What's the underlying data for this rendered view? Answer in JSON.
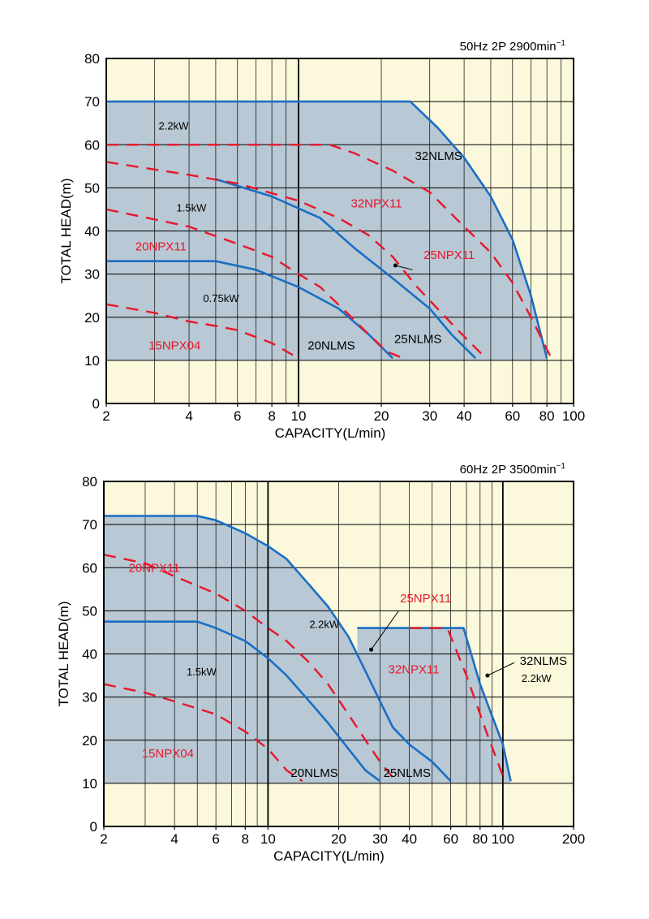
{
  "chart_data": [
    {
      "type": "line",
      "condition": "50Hz 2P 2900min",
      "condition_sup": "−1",
      "xlabel": "CAPACITY(L/min)",
      "ylabel": "TOTAL HEAD(m)",
      "xscale": "log",
      "xlim": [
        2,
        100
      ],
      "ylim": [
        0,
        80
      ],
      "x_ticks": [
        2,
        4,
        6,
        8,
        10,
        20,
        30,
        40,
        60,
        80,
        100
      ],
      "x_tick_labels": [
        "2",
        "4",
        "6",
        "8",
        "10",
        "20",
        "30",
        "40",
        "60",
        "80",
        "100"
      ],
      "y_ticks": [
        0,
        10,
        20,
        30,
        40,
        50,
        60,
        70,
        80
      ],
      "y_tick_labels": [
        "0",
        "10",
        "20",
        "30",
        "40",
        "50",
        "60",
        "70",
        "80"
      ],
      "shade_min_y": 10,
      "colors": {
        "nlms": "#1a6fc4",
        "npx": "#e8172b",
        "shade": "#b8c8d4",
        "background": "#fbf8dc"
      },
      "series": [
        {
          "name": "32NLMS",
          "style": "solid",
          "points": [
            [
              2,
              70
            ],
            [
              25.5,
              70
            ],
            [
              32,
              64
            ],
            [
              40,
              57
            ],
            [
              50,
              48
            ],
            [
              60,
              38
            ],
            [
              70,
              25
            ],
            [
              80,
              10.5
            ]
          ]
        },
        {
          "name": "32NPX11",
          "style": "dashed",
          "points": [
            [
              2,
              60
            ],
            [
              13,
              60
            ],
            [
              16,
              58
            ],
            [
              22,
              54
            ],
            [
              30,
              49
            ],
            [
              40,
              41
            ],
            [
              50,
              35
            ],
            [
              60,
              28
            ],
            [
              70,
              20
            ],
            [
              83,
              10.5
            ]
          ]
        },
        {
          "name": "25NLMS",
          "style": "solid",
          "points": [
            [
              5,
              52
            ],
            [
              8,
              48
            ],
            [
              12,
              43
            ],
            [
              16,
              36
            ],
            [
              22,
              29
            ],
            [
              30,
              22
            ],
            [
              36,
              16
            ],
            [
              44,
              10.5
            ]
          ]
        },
        {
          "name": "25NPX11",
          "style": "dashed",
          "points": [
            [
              2,
              56
            ],
            [
              4,
              53
            ],
            [
              6,
              51
            ],
            [
              10,
              47
            ],
            [
              14,
              43
            ],
            [
              18,
              39
            ],
            [
              22,
              34
            ],
            [
              27,
              27
            ],
            [
              32,
              22
            ],
            [
              38,
              17
            ],
            [
              48,
              10.5
            ]
          ]
        },
        {
          "name": "20NLMS",
          "style": "solid",
          "points": [
            [
              2,
              33
            ],
            [
              5,
              33
            ],
            [
              7,
              31
            ],
            [
              10,
              27
            ],
            [
              14,
              22
            ],
            [
              18,
              16
            ],
            [
              22,
              10.5
            ]
          ]
        },
        {
          "name": "20NPX11",
          "style": "dashed",
          "points": [
            [
              2,
              45
            ],
            [
              4,
              41
            ],
            [
              6,
              37
            ],
            [
              8,
              34
            ],
            [
              10,
              30
            ],
            [
              12,
              27
            ],
            [
              15,
              21
            ],
            [
              18,
              16
            ],
            [
              21,
              12
            ],
            [
              24,
              10.5
            ]
          ]
        },
        {
          "name": "15NPX04",
          "style": "dashed",
          "points": [
            [
              2,
              23
            ],
            [
              3,
              21
            ],
            [
              4,
              19
            ],
            [
              5,
              18
            ],
            [
              6,
              17
            ],
            [
              8,
              14
            ],
            [
              10,
              10.5
            ]
          ]
        }
      ],
      "labels": [
        {
          "text": "2.2kW",
          "x": 3.1,
          "y": 63.5,
          "color": "#000",
          "size": "small"
        },
        {
          "text": "32NLMS",
          "x": 26.5,
          "y": 56.5,
          "color": "#000",
          "size": "normal"
        },
        {
          "text": "32NPX11",
          "x": 15.5,
          "y": 45.5,
          "color": "#e8172b",
          "size": "normal"
        },
        {
          "text": "1.5kW",
          "x": 3.6,
          "y": 44.5,
          "color": "#000",
          "size": "small"
        },
        {
          "text": "20NPX11",
          "x": 2.55,
          "y": 35.5,
          "color": "#e8172b",
          "size": "normal"
        },
        {
          "text": "25NPX11",
          "x": 28.5,
          "y": 33.5,
          "color": "#e8172b",
          "size": "normal"
        },
        {
          "text": "0.75kW",
          "x": 4.5,
          "y": 23.5,
          "color": "#000",
          "size": "small"
        },
        {
          "text": "15NPX04",
          "x": 2.85,
          "y": 12.5,
          "color": "#e8172b",
          "size": "normal"
        },
        {
          "text": "20NLMS",
          "x": 10.8,
          "y": 12.5,
          "color": "#000",
          "size": "normal"
        },
        {
          "text": "25NLMS",
          "x": 22.3,
          "y": 14.0,
          "color": "#000",
          "size": "normal"
        }
      ],
      "leaders": [
        {
          "from": [
            26,
            31
          ],
          "to": [
            22.5,
            32
          ]
        }
      ]
    },
    {
      "type": "line",
      "condition": "60Hz 2P 3500min",
      "condition_sup": "−1",
      "xlabel": "CAPACITY(L/min)",
      "ylabel": "TOTAL HEAD(m)",
      "xscale": "log",
      "xlim": [
        2,
        200
      ],
      "ylim": [
        0,
        80
      ],
      "x_ticks": [
        2,
        4,
        6,
        8,
        10,
        20,
        30,
        40,
        60,
        80,
        100,
        200
      ],
      "x_tick_labels": [
        "2",
        "4",
        "6",
        "8",
        "10",
        "20",
        "30",
        "40",
        "60",
        "80",
        "100",
        "200"
      ],
      "y_ticks": [
        0,
        10,
        20,
        30,
        40,
        50,
        60,
        70,
        80
      ],
      "y_tick_labels": [
        "0",
        "10",
        "20",
        "30",
        "40",
        "50",
        "60",
        "70",
        "80"
      ],
      "shade_min_y": 10,
      "colors": {
        "nlms": "#1a6fc4",
        "npx": "#e8172b",
        "shade": "#b8c8d4",
        "background": "#fbf8dc"
      },
      "series": [
        {
          "name": "25NLMS",
          "style": "solid",
          "points": [
            [
              2,
              72
            ],
            [
              5,
              72
            ],
            [
              6,
              71
            ],
            [
              8,
              68
            ],
            [
              10,
              65
            ],
            [
              12,
              62
            ],
            [
              15,
              56
            ],
            [
              18,
              51
            ],
            [
              22,
              44
            ],
            [
              26,
              36
            ],
            [
              30,
              29
            ],
            [
              34,
              23
            ],
            [
              40,
              19
            ],
            [
              50,
              15
            ],
            [
              60,
              10.5
            ]
          ]
        },
        {
          "name": "25NPX11",
          "style": "dashed",
          "points": [
            [
              2,
              63
            ],
            [
              3,
              61
            ],
            [
              4,
              58
            ],
            [
              6,
              54
            ],
            [
              8,
              50
            ],
            [
              10,
              46
            ],
            [
              12,
              43
            ],
            [
              15,
              38
            ],
            [
              18,
              33
            ],
            [
              22,
              26
            ],
            [
              26,
              20
            ],
            [
              30,
              15
            ],
            [
              35,
              10.5
            ]
          ]
        },
        {
          "name": "20NLMS",
          "style": "solid",
          "points": [
            [
              2,
              47.5
            ],
            [
              5,
              47.5
            ],
            [
              6,
              46
            ],
            [
              8,
              43
            ],
            [
              10,
              39
            ],
            [
              12,
              35
            ],
            [
              15,
              29
            ],
            [
              18,
              24
            ],
            [
              22,
              18
            ],
            [
              26,
              13
            ],
            [
              30,
              10.5
            ]
          ]
        },
        {
          "name": "20NPX11",
          "style": "dashed",
          "points": [
            [
              2,
              33
            ],
            [
              3,
              31
            ],
            [
              4,
              29
            ],
            [
              6,
              26
            ],
            [
              8,
              22
            ],
            [
              10,
              18
            ],
            [
              12,
              13
            ],
            [
              14,
              10.5
            ]
          ]
        },
        {
          "name": "32NLMS",
          "style": "solid",
          "points": [
            [
              24,
              46
            ],
            [
              68,
              46
            ],
            [
              80,
              33
            ],
            [
              100,
              19
            ],
            [
              108,
              10.5
            ]
          ]
        },
        {
          "name": "32NPX11",
          "style": "dashed",
          "points": [
            [
              40,
              46
            ],
            [
              58,
              46
            ],
            [
              70,
              35
            ],
            [
              85,
              22
            ],
            [
              102,
              10.5
            ]
          ]
        }
      ],
      "labels": [
        {
          "text": "20NPX11",
          "x": 2.55,
          "y": 59.0,
          "color": "#e8172b",
          "size": "normal"
        },
        {
          "text": "25NPX11",
          "x": 36.5,
          "y": 52.0,
          "color": "#e8172b",
          "size": "normal"
        },
        {
          "text": "2.2kW",
          "x": 15.0,
          "y": 46.0,
          "color": "#000",
          "size": "small"
        },
        {
          "text": "32NLMS",
          "x": 118,
          "y": 37.5,
          "color": "#000",
          "size": "normal"
        },
        {
          "text": "2.2kW",
          "x": 120,
          "y": 33.5,
          "color": "#000",
          "size": "small"
        },
        {
          "text": "1.5kW",
          "x": 4.5,
          "y": 35.0,
          "color": "#000",
          "size": "small"
        },
        {
          "text": "32NPX11",
          "x": 32.5,
          "y": 35.5,
          "color": "#e8172b",
          "size": "normal"
        },
        {
          "text": "15NPX04",
          "x": 2.9,
          "y": 16.0,
          "color": "#e8172b",
          "size": "normal"
        },
        {
          "text": "20NLMS",
          "x": 12.5,
          "y": 11.5,
          "color": "#000",
          "size": "normal"
        },
        {
          "text": "25NLMS",
          "x": 31.0,
          "y": 11.5,
          "color": "#000",
          "size": "normal"
        }
      ],
      "leaders": [
        {
          "from": [
            36,
            50
          ],
          "to": [
            27.5,
            41
          ]
        },
        {
          "from": [
            112,
            38
          ],
          "to": [
            86,
            35
          ]
        }
      ]
    }
  ]
}
